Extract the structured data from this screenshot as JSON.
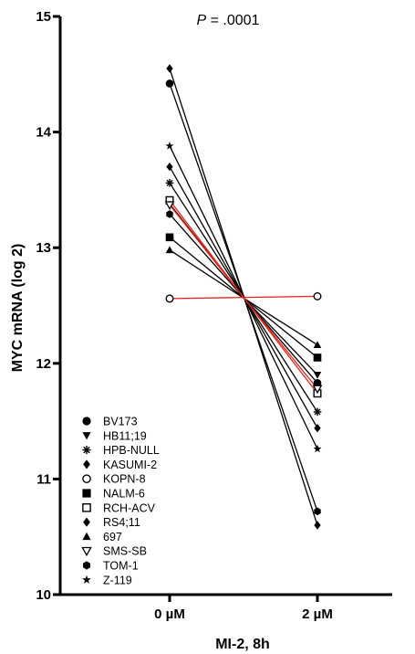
{
  "chart_data": {
    "type": "line",
    "title": "",
    "annotation": {
      "italic_part": "P",
      "rest": " = .0001"
    },
    "xlabel": "MI-2, 8h",
    "ylabel": "MYC mRNA (log 2)",
    "categories": [
      "0 µM",
      "2 µM"
    ],
    "ylim": [
      10,
      15
    ],
    "yticks": [
      "10",
      "11",
      "12",
      "13",
      "14",
      "15"
    ],
    "grid": false,
    "legend_position": "bottom-left",
    "series": [
      {
        "name": "BV173",
        "marker": "circle",
        "color": "#000000",
        "values": [
          14.42,
          11.83
        ]
      },
      {
        "name": "HB11;19",
        "marker": "triangle-down",
        "color": "#000000",
        "values": [
          13.38,
          11.9
        ]
      },
      {
        "name": "HPB-NULL",
        "marker": "asterisk",
        "color": "#000000",
        "values": [
          13.56,
          11.58
        ]
      },
      {
        "name": "KASUMI-2",
        "marker": "diamond",
        "color": "#000000",
        "values": [
          14.55,
          10.6
        ]
      },
      {
        "name": "KOPN-8",
        "marker": "circle-open",
        "color": "#e8221b",
        "values": [
          12.56,
          12.58
        ]
      },
      {
        "name": "NALM-6",
        "marker": "square",
        "color": "#000000",
        "values": [
          13.09,
          12.05
        ]
      },
      {
        "name": "RCH-ACV",
        "marker": "square-open",
        "color": "#e8221b",
        "values": [
          13.41,
          11.74
        ]
      },
      {
        "name": "RS4;11",
        "marker": "diamond",
        "color": "#000000",
        "values": [
          13.7,
          11.44
        ]
      },
      {
        "name": "697",
        "marker": "triangle-up",
        "color": "#000000",
        "values": [
          12.98,
          12.16
        ]
      },
      {
        "name": "SMS-SB",
        "marker": "triangle-down-open",
        "color": "#e8221b",
        "values": [
          13.37,
          11.78
        ]
      },
      {
        "name": "TOM-1",
        "marker": "hexagon",
        "color": "#000000",
        "values": [
          13.29,
          10.72
        ]
      },
      {
        "name": "Z-119",
        "marker": "star",
        "color": "#000000",
        "values": [
          13.88,
          11.26
        ]
      }
    ]
  }
}
